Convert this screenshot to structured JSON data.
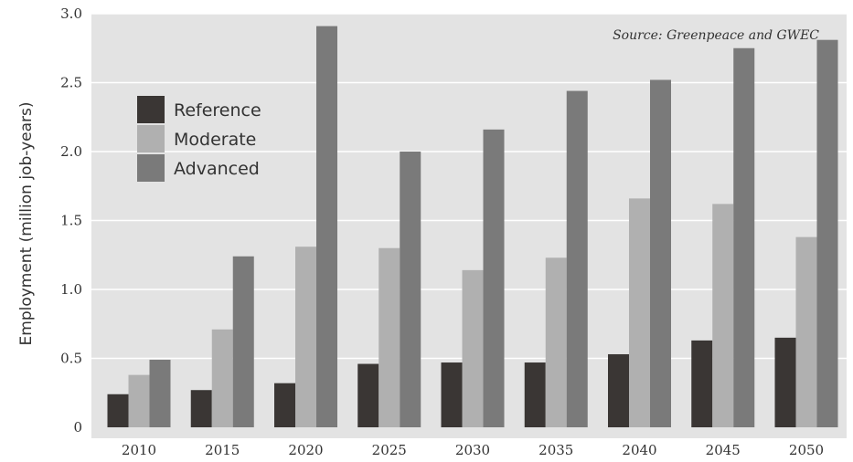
{
  "chart_data": {
    "type": "bar",
    "title": "",
    "ylabel": "Employment (million job-years)",
    "xlabel": "",
    "annotation": "Source: Greenpeace and GWEC",
    "categories": [
      "2010",
      "2015",
      "2020",
      "2025",
      "2030",
      "2035",
      "2040",
      "2045",
      "2050"
    ],
    "yticks": [
      "0",
      "0.5",
      "1.0",
      "1.5",
      "2.0",
      "2.5",
      "3.0"
    ],
    "ylim": [
      0,
      3.0
    ],
    "grid": true,
    "legend_position": "top-left",
    "series": [
      {
        "name": "Reference",
        "color": "#3a3634",
        "values": [
          0.24,
          0.27,
          0.32,
          0.46,
          0.47,
          0.47,
          0.53,
          0.63,
          0.65
        ]
      },
      {
        "name": "Moderate",
        "color": "#b0b0b0",
        "values": [
          0.38,
          0.71,
          1.31,
          1.3,
          1.14,
          1.23,
          1.66,
          1.62,
          1.38
        ]
      },
      {
        "name": "Advanced",
        "color": "#7a7a7a",
        "values": [
          0.49,
          1.24,
          2.91,
          2.0,
          2.16,
          2.44,
          2.52,
          2.75,
          2.81
        ]
      }
    ]
  }
}
